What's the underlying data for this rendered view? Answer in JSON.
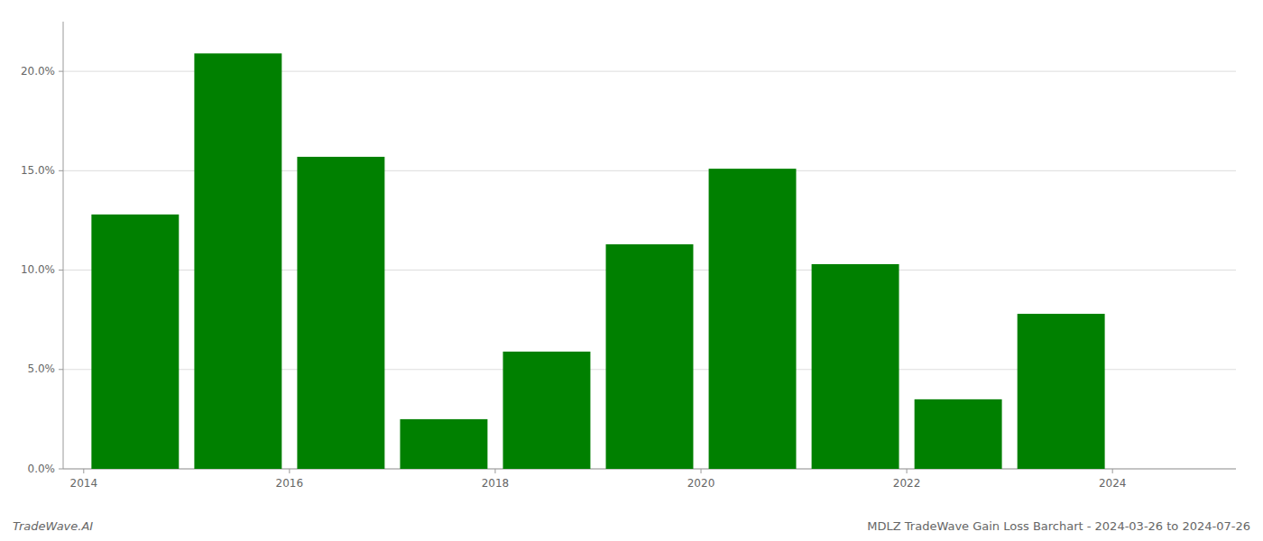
{
  "chart_data": {
    "type": "bar",
    "x": [
      2014,
      2015,
      2016,
      2017,
      2018,
      2019,
      2020,
      2021,
      2022,
      2023
    ],
    "values": [
      0.128,
      0.209,
      0.157,
      0.025,
      0.059,
      0.113,
      0.151,
      0.103,
      0.035,
      0.078
    ],
    "color": "#008000",
    "xlim": [
      2013.3,
      2024.7
    ],
    "xticks": [
      {
        "value": 2013.5,
        "label": "2014"
      },
      {
        "value": 2015.5,
        "label": "2016"
      },
      {
        "value": 2017.5,
        "label": "2018"
      },
      {
        "value": 2019.5,
        "label": "2020"
      },
      {
        "value": 2021.5,
        "label": "2022"
      },
      {
        "value": 2023.5,
        "label": "2024"
      }
    ],
    "ylim": [
      0,
      0.225
    ],
    "yticks": [
      {
        "value": 0.0,
        "label": "0.0%"
      },
      {
        "value": 0.05,
        "label": "5.0%"
      },
      {
        "value": 0.1,
        "label": "10.0%"
      },
      {
        "value": 0.15,
        "label": "15.0%"
      },
      {
        "value": 0.2,
        "label": "20.0%"
      }
    ],
    "grid": true,
    "annotations": [
      "TradeWave.AI",
      "MDLZ TradeWave Gain Loss Barchart - 2024-03-26 to 2024-07-26"
    ]
  }
}
